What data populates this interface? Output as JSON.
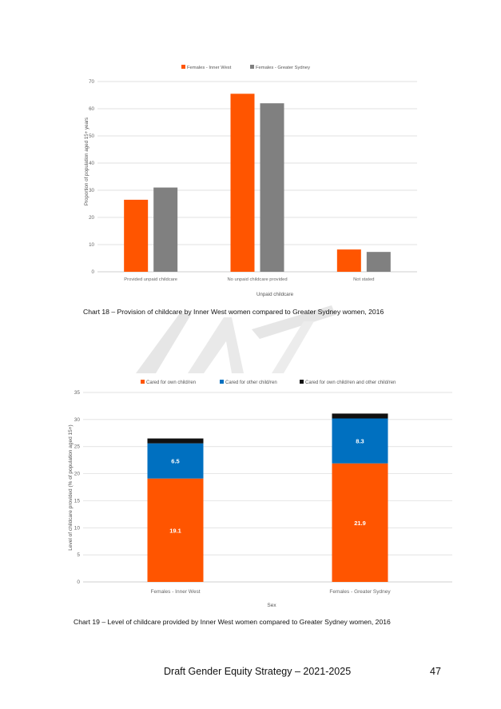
{
  "chart_data": [
    {
      "type": "bar",
      "title": "",
      "categories": [
        "Provided unpaid childcare",
        "No unpaid childcare provided",
        "Not stated"
      ],
      "series": [
        {
          "name": "Females - Inner West",
          "values": [
            26.5,
            65.5,
            8.2
          ],
          "color": "#FF5500"
        },
        {
          "name": "Females - Greater Sydney",
          "values": [
            31.0,
            62.0,
            7.3
          ],
          "color": "#808080"
        }
      ],
      "xlabel": "Unpaid childcare",
      "ylabel": "Proportion of population aged 15+ years",
      "ylim": [
        0,
        70
      ],
      "yticks": [
        0,
        10,
        20,
        30,
        40,
        50,
        60,
        70
      ],
      "legend": "top",
      "grid": true
    },
    {
      "type": "bar",
      "stacked": true,
      "title": "",
      "categories": [
        "Females - Inner West",
        "Females - Greater Sydney"
      ],
      "series": [
        {
          "name": "Cared for own child/ren",
          "values": [
            19.1,
            21.9
          ],
          "labels": [
            "19.1",
            "21.9"
          ],
          "color": "#FF5500"
        },
        {
          "name": "Cared for other child/ren",
          "values": [
            6.5,
            8.3
          ],
          "labels": [
            "6.5",
            "8.3"
          ],
          "color": "#0070C0"
        },
        {
          "name": "Cared for own child/ren and other child/ren",
          "values": [
            0.9,
            0.9
          ],
          "color": "#111111"
        }
      ],
      "xlabel": "Sex",
      "ylabel": "Level of childcare provided (% of population aged 15+)",
      "ylim": [
        0,
        35
      ],
      "yticks": [
        0,
        5,
        10,
        15,
        20,
        25,
        30,
        35
      ],
      "legend": "top",
      "grid": true
    }
  ],
  "captions": {
    "chart18": "Chart 18 – Provision of childcare by Inner West women compared to Greater Sydney women, 2016",
    "chart19": "Chart 19 – Level of childcare provided by Inner West women compared to Greater Sydney women, 2016"
  },
  "footer": {
    "title": "Draft Gender Equity Strategy – 2021-2025",
    "page_number": "47"
  },
  "colors": {
    "orange": "#FF5500",
    "grey": "#808080",
    "blue": "#0070C0",
    "black": "#111111",
    "grid": "#D9D9D9"
  }
}
